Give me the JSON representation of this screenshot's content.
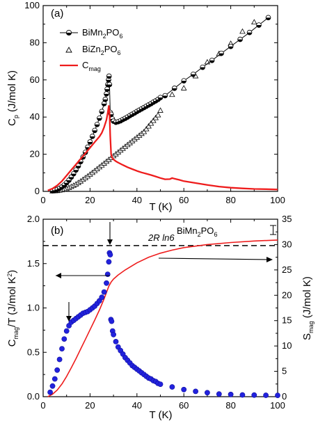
{
  "chart_data": [
    {
      "type": "line",
      "panel_label": "(a)",
      "xlabel": "T (K)",
      "ylabel": "C",
      "ylabel_sub": "p",
      "ylabel_unit": " (J/mol K)",
      "xlim": [
        0,
        100
      ],
      "ylim": [
        0,
        100
      ],
      "x_ticks": [
        "0",
        "20",
        "40",
        "60",
        "80",
        "100"
      ],
      "y_ticks": [
        "0",
        "20",
        "40",
        "60",
        "80",
        "100"
      ],
      "legend_position": "top-left",
      "series": [
        {
          "name": "BiMn2PO6",
          "legend_main": "BiMn",
          "legend_sub": "2",
          "legend_rest": "PO",
          "legend_sub2": "6",
          "marker": "half-filled-circle",
          "color": "#000000",
          "x": [
            4,
            5,
            6,
            7,
            8,
            9,
            10,
            11,
            12,
            13,
            14,
            15,
            16,
            17,
            18,
            19,
            20,
            21,
            22,
            23,
            24,
            25,
            26,
            26.5,
            27,
            27.3,
            27.6,
            27.9,
            28.1,
            28.3,
            28.6,
            29.0,
            29.5,
            30,
            31,
            32,
            33,
            34,
            35,
            36,
            37,
            38,
            39,
            40,
            41,
            42,
            43,
            44,
            45,
            46,
            47,
            48,
            49,
            50,
            52,
            56,
            60,
            64,
            68,
            72,
            76,
            80,
            84,
            88,
            92,
            96
          ],
          "y": [
            0.3,
            0.6,
            1.0,
            1.6,
            2.4,
            3.4,
            4.6,
            6.0,
            7.7,
            9.5,
            11.5,
            13.7,
            16.0,
            18.5,
            21.0,
            23.8,
            26.6,
            29.6,
            32.8,
            36.0,
            39.4,
            43.0,
            47.2,
            49.5,
            52.5,
            55.0,
            57.5,
            60.0,
            62.0,
            57.5,
            42.5,
            41.5,
            39.0,
            37.8,
            37.2,
            37.5,
            38.0,
            38.7,
            39.3,
            40.0,
            40.8,
            41.5,
            42.2,
            43.0,
            43.7,
            44.4,
            45.1,
            45.8,
            46.5,
            47.2,
            48.0,
            48.7,
            49.5,
            50.5,
            51.5,
            55.5,
            59.5,
            63.0,
            66.8,
            70.5,
            74.3,
            78.0,
            81.8,
            85.5,
            89.5,
            93.5
          ]
        },
        {
          "name": "BiZn2PO6",
          "legend_main": "BiZn",
          "legend_sub": "2",
          "legend_rest": "PO",
          "legend_sub2": "6",
          "marker": "open-triangle",
          "color": "#000000",
          "x": [
            4,
            5,
            6,
            7,
            8,
            9,
            10,
            11,
            12,
            13,
            14,
            15,
            16,
            17,
            18,
            19,
            20,
            21,
            22,
            23,
            24,
            25,
            26,
            27,
            28,
            29,
            30,
            31,
            32,
            33,
            34,
            35,
            36,
            37,
            38,
            39,
            40,
            41,
            42,
            43,
            44,
            45,
            46,
            47,
            48,
            49,
            50,
            55,
            60,
            65,
            70,
            75,
            80,
            85,
            90
          ],
          "y": [
            0.1,
            0.2,
            0.3,
            0.5,
            0.7,
            1.0,
            1.4,
            1.9,
            2.5,
            3.1,
            3.8,
            4.6,
            5.4,
            6.3,
            7.2,
            8.1,
            9.1,
            10.0,
            11.0,
            12.0,
            13.0,
            14.0,
            15.0,
            16.0,
            17.0,
            18.0,
            19.0,
            20.0,
            21.0,
            22.0,
            23.0,
            24.0,
            25.0,
            26.0,
            27.0,
            28.0,
            29.0,
            30.0,
            31.0,
            32.0,
            33.5,
            35.0,
            36.5,
            38.0,
            39.5,
            41.0,
            43.5,
            52.0,
            55.5,
            62.0,
            69.5,
            74.0,
            79.5,
            86.0,
            91.0
          ]
        },
        {
          "name": "Cmag",
          "legend_main": "C",
          "legend_sub": "mag",
          "marker": "none",
          "color": "#ee1c1c",
          "x": [
            2,
            4,
            6,
            8,
            10,
            12,
            14,
            16,
            18,
            20,
            22,
            24,
            25,
            26,
            27,
            27.5,
            28.0,
            28.3,
            28.6,
            29.0,
            29.5,
            30,
            31,
            32,
            34,
            36,
            38,
            40,
            42,
            44,
            46,
            48,
            50,
            52,
            54,
            55,
            56,
            58,
            60,
            65,
            70,
            75,
            80,
            85,
            90,
            95,
            100
          ],
          "y": [
            0.5,
            1.5,
            3.2,
            5.5,
            8.5,
            11.5,
            14.5,
            17.5,
            20.5,
            23.5,
            26.5,
            29.5,
            31.5,
            34.5,
            38.5,
            42.0,
            46.0,
            42.0,
            30.0,
            20.0,
            18.0,
            17.2,
            16.2,
            15.5,
            14.2,
            13.0,
            12.0,
            11.0,
            10.2,
            9.5,
            8.8,
            8.0,
            7.2,
            6.5,
            6.6,
            7.2,
            6.8,
            6.2,
            5.5,
            4.5,
            3.5,
            2.6,
            2.0,
            1.6,
            1.3,
            1.2,
            1.0
          ]
        }
      ]
    },
    {
      "type": "line",
      "panel_label": "(b)",
      "xlabel": "T (K)",
      "ylabel_left": "C",
      "ylabel_left_sub": "mag",
      "ylabel_left_rest": "/T (J/mol K",
      "ylabel_left_sup": "2",
      "ylabel_left_end": ")",
      "ylabel_right": "S",
      "ylabel_right_sub": "mag",
      "ylabel_right_rest": " (J/mol K)",
      "xlim": [
        0,
        100
      ],
      "ylim_left": [
        0,
        2.0
      ],
      "ylim_right": [
        0,
        35
      ],
      "x_ticks": [
        "0",
        "20",
        "40",
        "60",
        "80",
        "100"
      ],
      "y_ticks_left": [
        "0.0",
        "0.5",
        "1.0",
        "1.5",
        "2.0"
      ],
      "y_ticks_right": [
        "0",
        "5",
        "10",
        "15",
        "20",
        "25",
        "30",
        "35"
      ],
      "compound_label": "BiMn",
      "compound_sub": "2",
      "compound_rest": "PO",
      "compound_sub2": "6",
      "reference_line_label": "2R ln6",
      "reference_value": 29.8,
      "series": [
        {
          "name": "Cmag/T",
          "axis": "left",
          "marker": "filled-circle",
          "color": "#2222dd",
          "x": [
            3,
            4,
            5,
            6,
            7,
            8,
            9,
            10,
            11,
            12,
            13,
            14,
            15,
            16,
            17,
            18,
            19,
            20,
            21,
            22,
            23,
            24,
            25,
            26,
            27,
            27.5,
            28.0,
            28.3,
            28.6,
            28.9,
            29.2,
            29.6,
            30,
            31,
            32,
            33,
            34,
            35,
            36,
            37,
            38,
            39,
            40,
            41,
            42,
            43,
            44,
            45,
            46,
            47,
            48,
            49,
            50,
            55,
            60,
            65,
            70,
            75,
            80,
            85,
            90,
            95,
            100
          ],
          "y": [
            0.05,
            0.12,
            0.2,
            0.3,
            0.42,
            0.54,
            0.65,
            0.74,
            0.8,
            0.84,
            0.86,
            0.88,
            0.9,
            0.92,
            0.94,
            0.95,
            0.96,
            0.98,
            1.0,
            1.02,
            1.05,
            1.08,
            1.12,
            1.18,
            1.28,
            1.38,
            1.52,
            1.62,
            1.6,
            0.87,
            0.85,
            0.74,
            0.7,
            0.62,
            0.56,
            0.52,
            0.48,
            0.44,
            0.41,
            0.38,
            0.35,
            0.33,
            0.31,
            0.29,
            0.27,
            0.25,
            0.23,
            0.21,
            0.2,
            0.18,
            0.17,
            0.15,
            0.14,
            0.11,
            0.08,
            0.06,
            0.045,
            0.03,
            0.025,
            0.02,
            0.018,
            0.016,
            0.015
          ]
        },
        {
          "name": "Smag",
          "axis": "right",
          "marker": "none",
          "color": "#ee1c1c",
          "x": [
            2,
            4,
            6,
            8,
            10,
            12,
            14,
            16,
            18,
            20,
            22,
            24,
            26,
            28,
            29,
            30,
            32,
            35,
            40,
            45,
            50,
            55,
            60,
            70,
            80,
            90,
            100
          ],
          "y": [
            0,
            0.5,
            1.3,
            2.5,
            4.0,
            5.7,
            7.5,
            9.4,
            11.3,
            13.2,
            15.1,
            17.1,
            19.3,
            21.8,
            22.6,
            23.2,
            24.0,
            25.0,
            26.4,
            27.5,
            28.3,
            28.9,
            29.4,
            30.0,
            30.4,
            30.7,
            30.9
          ]
        }
      ]
    }
  ]
}
